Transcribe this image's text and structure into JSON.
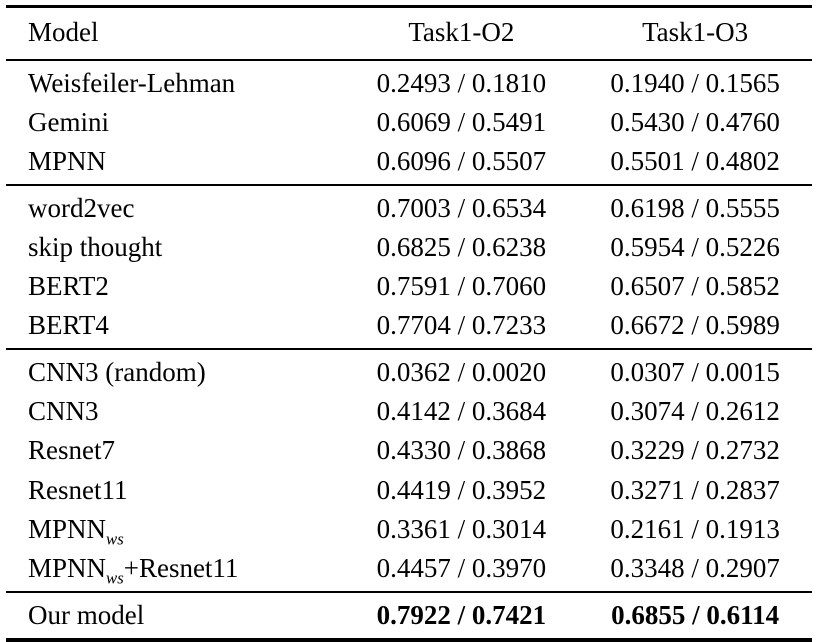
{
  "page": {
    "background": "#ffffff",
    "text_color": "#000000",
    "rule_color": "#000000"
  },
  "table": {
    "columns": [
      "Model",
      "Task1-O2",
      "Task1-O3"
    ],
    "groups": [
      {
        "rows": [
          {
            "model": "Weisfeiler-Lehman",
            "task1_o2": "0.2493 / 0.1810",
            "task1_o3": "0.1940 / 0.1565"
          },
          {
            "model": "Gemini",
            "task1_o2": "0.6069 / 0.5491",
            "task1_o3": "0.5430 / 0.4760"
          },
          {
            "model": "MPNN",
            "task1_o2": "0.6096 / 0.5507",
            "task1_o3": "0.5501 / 0.4802"
          }
        ]
      },
      {
        "rows": [
          {
            "model": "word2vec",
            "task1_o2": "0.7003 / 0.6534",
            "task1_o3": "0.6198 / 0.5555"
          },
          {
            "model": "skip thought",
            "task1_o2": "0.6825 / 0.6238",
            "task1_o3": "0.5954 / 0.5226"
          },
          {
            "model": "BERT2",
            "task1_o2": "0.7591 / 0.7060",
            "task1_o3": "0.6507 / 0.5852"
          },
          {
            "model": "BERT4",
            "task1_o2": "0.7704 / 0.7233",
            "task1_o3": "0.6672 / 0.5989"
          }
        ]
      },
      {
        "rows": [
          {
            "model": "CNN3 (random)",
            "task1_o2": "0.0362 / 0.0020",
            "task1_o3": "0.0307 / 0.0015"
          },
          {
            "model": "CNN3",
            "task1_o2": "0.4142 / 0.3684",
            "task1_o3": "0.3074 / 0.2612"
          },
          {
            "model": "Resnet7",
            "task1_o2": "0.4330 / 0.3868",
            "task1_o3": "0.3229 / 0.2732"
          },
          {
            "model": "Resnet11",
            "task1_o2": "0.4419 / 0.3952",
            "task1_o3": "0.3271 / 0.2837"
          },
          {
            "model": "MPNNws",
            "model_parts": [
              {
                "t": "MPNN"
              },
              {
                "s": "ws"
              }
            ],
            "task1_o2": "0.3361 / 0.3014",
            "task1_o3": "0.2161 / 0.1913"
          },
          {
            "model": "MPNNws+Resnet11",
            "model_parts": [
              {
                "t": "MPNN"
              },
              {
                "s": "ws"
              },
              {
                "t": "+Resnet11"
              }
            ],
            "task1_o2": "0.4457 / 0.3970",
            "task1_o3": "0.3348 / 0.2907"
          }
        ]
      },
      {
        "rows": [
          {
            "model": "Our model",
            "task1_o2": "0.7922 / 0.7421",
            "task1_o3": "0.6855 / 0.6114",
            "bold_values": true
          }
        ]
      }
    ]
  }
}
